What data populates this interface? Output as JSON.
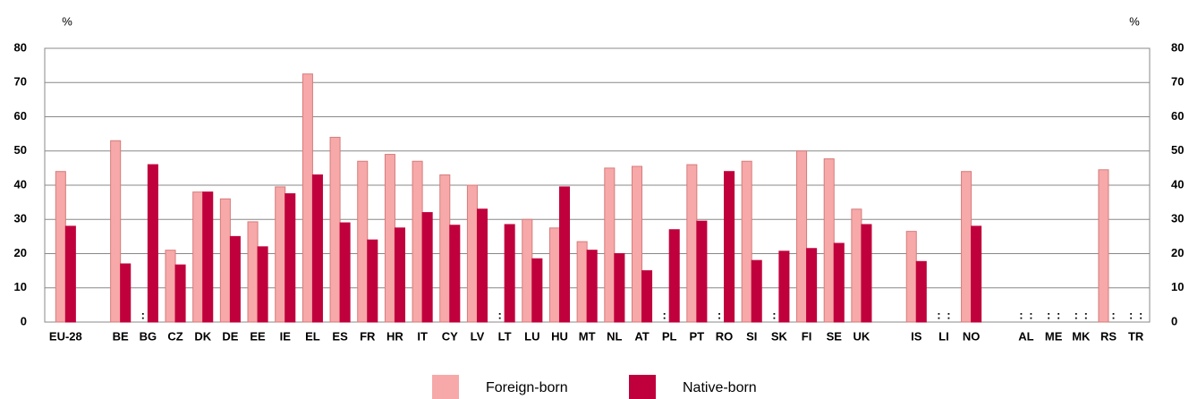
{
  "chart_data": {
    "type": "bar",
    "y_label": "%",
    "y2_label": "%",
    "categories": [
      "EU-28",
      null,
      "BE",
      "BG",
      "CZ",
      "DK",
      "DE",
      "EE",
      "IE",
      "EL",
      "ES",
      "FR",
      "HR",
      "IT",
      "CY",
      "LV",
      "LT",
      "LU",
      "HU",
      "MT",
      "NL",
      "AT",
      "PL",
      "PT",
      "RO",
      "SI",
      "SK",
      "FI",
      "SE",
      "UK",
      null,
      "IS",
      "LI",
      "NO",
      null,
      "AL",
      "ME",
      "MK",
      "RS",
      "TR"
    ],
    "series": [
      {
        "name": "Foreign-born",
        "color": "#f7a8a8",
        "values": [
          44,
          null,
          53,
          null,
          21,
          38,
          36,
          29.3,
          39.5,
          72.5,
          54,
          47,
          49,
          47,
          43,
          40,
          null,
          30,
          27.5,
          23.5,
          45,
          45.5,
          null,
          46,
          null,
          47,
          null,
          50,
          47.7,
          33,
          null,
          26.5,
          null,
          44,
          null,
          null,
          null,
          null,
          44.5,
          null
        ],
        "value_labels": [
          null,
          null,
          null,
          ":",
          null,
          null,
          null,
          null,
          null,
          null,
          null,
          null,
          null,
          null,
          null,
          null,
          ":",
          null,
          null,
          null,
          null,
          null,
          ":",
          null,
          ":",
          null,
          ":",
          null,
          null,
          null,
          null,
          null,
          ":",
          null,
          null,
          ":",
          ":",
          ":",
          null,
          ":"
        ]
      },
      {
        "name": "Native-born",
        "color": "#c0003c",
        "values": [
          28,
          null,
          17,
          46,
          16.7,
          38,
          25,
          22,
          37.5,
          43,
          29,
          24,
          27.5,
          32,
          28.3,
          33,
          28.5,
          18.5,
          39.5,
          21,
          20,
          15,
          27,
          29.5,
          44,
          18,
          20.7,
          21.5,
          23,
          28.5,
          null,
          17.7,
          null,
          28,
          null,
          null,
          null,
          null,
          null,
          null
        ],
        "value_labels": [
          null,
          null,
          null,
          null,
          null,
          null,
          null,
          null,
          null,
          null,
          null,
          null,
          null,
          null,
          null,
          null,
          null,
          null,
          null,
          null,
          null,
          null,
          null,
          null,
          null,
          null,
          null,
          null,
          null,
          null,
          null,
          null,
          ":",
          null,
          null,
          ":",
          ":",
          ":",
          ":",
          ":"
        ]
      }
    ],
    "ylim": [
      0,
      80
    ],
    "yticks": [
      0,
      10,
      20,
      30,
      40,
      50,
      60,
      70,
      80
    ],
    "grid": true,
    "legend": "bottom"
  }
}
